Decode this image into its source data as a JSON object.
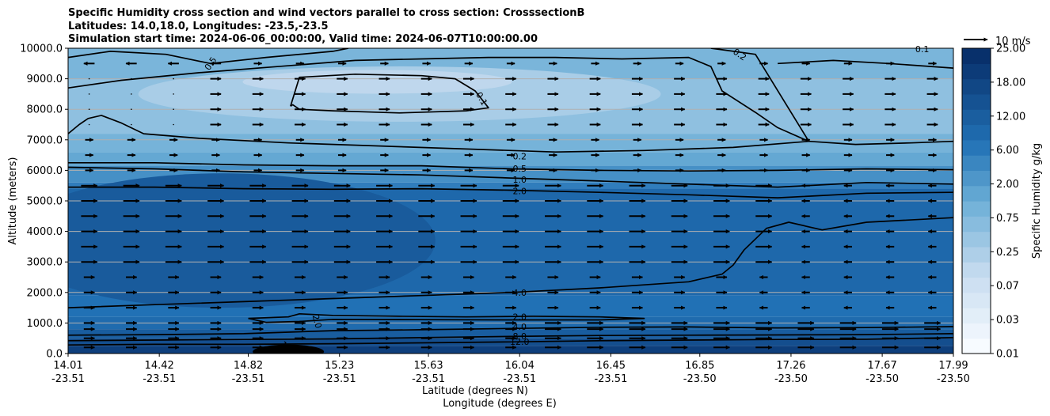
{
  "chart_data": {
    "type": "contour+quiver",
    "title_lines": [
      "Specific Humidity cross section and wind vectors parallel to cross section: CrosssectionB",
      "Latitudes: 14.0,18.0, Longitudes: -23.5,-23.5",
      "Simulation start time: 2024-06-06_00:00:00, Valid time: 2024-06-07T10:00:00.00"
    ],
    "xlabel_lines": [
      "Latitude (degrees N)",
      "Longitude (degrees E)"
    ],
    "ylabel": "Altitude (meters)",
    "ylim": [
      0,
      10000
    ],
    "yticks": [
      0,
      1000,
      2000,
      3000,
      4000,
      5000,
      6000,
      7000,
      8000,
      9000,
      10000
    ],
    "ytick_labels": [
      "0.0",
      "1000.0",
      "2000.0",
      "3000.0",
      "4000.0",
      "5000.0",
      "6000.0",
      "7000.0",
      "8000.0",
      "9000.0",
      "10000.0"
    ],
    "xlim": [
      14.01,
      17.99
    ],
    "xticks": [
      {
        "lat": "14.01",
        "lon": "-23.51"
      },
      {
        "lat": "14.42",
        "lon": "-23.51"
      },
      {
        "lat": "14.82",
        "lon": "-23.51"
      },
      {
        "lat": "15.23",
        "lon": "-23.51"
      },
      {
        "lat": "15.63",
        "lon": "-23.51"
      },
      {
        "lat": "16.04",
        "lon": "-23.51"
      },
      {
        "lat": "16.45",
        "lon": "-23.51"
      },
      {
        "lat": "16.85",
        "lon": "-23.50"
      },
      {
        "lat": "17.26",
        "lon": "-23.50"
      },
      {
        "lat": "17.67",
        "lon": "-23.50"
      },
      {
        "lat": "17.99",
        "lon": "-23.50"
      }
    ],
    "grid": "horizontal",
    "colorbar": {
      "label": "Specific Humidity g/kg",
      "tick_labels": [
        "0.01",
        "0.03",
        "0.07",
        "0.25",
        "0.75",
        "2.00",
        "6.00",
        "12.00",
        "18.00",
        "25.00"
      ],
      "n_levels": 20,
      "color_low": "#f7fbff",
      "color_high": "#08306b"
    },
    "quiver_key": {
      "label": "10 m/s",
      "speed": 10
    },
    "contour_levels": [
      0.1,
      0.2,
      0.5,
      1.0,
      2.0,
      4.0,
      8.0,
      12.0
    ],
    "contour_labels": [
      {
        "text": "0.5",
        "x": 14.65,
        "alt": 9500,
        "rot": -55
      },
      {
        "text": "0.2",
        "x": 17.03,
        "alt": 9800,
        "rot": 35
      },
      {
        "text": "0.1",
        "x": 17.85,
        "alt": 9970,
        "rot": 0
      },
      {
        "text": "0.1",
        "x": 15.87,
        "alt": 8350,
        "rot": 60
      },
      {
        "text": "0.2",
        "x": 16.04,
        "alt": 6460,
        "rot": 0
      },
      {
        "text": "0.5",
        "x": 16.04,
        "alt": 6060,
        "rot": 0
      },
      {
        "text": "1.0",
        "x": 16.04,
        "alt": 5700,
        "rot": 0
      },
      {
        "text": "2.0",
        "x": 16.04,
        "alt": 5330,
        "rot": 0
      },
      {
        "text": "4.0",
        "x": 16.04,
        "alt": 2000,
        "rot": 0
      },
      {
        "text": "2.0",
        "x": 15.13,
        "alt": 1050,
        "rot": 75
      },
      {
        "text": "2.0",
        "x": 16.04,
        "alt": 1200,
        "rot": 0
      },
      {
        "text": "4.0",
        "x": 16.04,
        "alt": 880,
        "rot": 0
      },
      {
        "text": "8.0",
        "x": 16.04,
        "alt": 570,
        "rot": 0
      },
      {
        "text": "12.0",
        "x": 16.04,
        "alt": 390,
        "rot": 0
      },
      {
        "text": "12",
        "x": 14.99,
        "alt": 230,
        "rot": 40
      }
    ],
    "contours": [
      {
        "level": 0.1,
        "x": [
          15.01,
          15.05,
          15.3,
          15.6,
          15.75,
          15.84,
          15.9,
          15.8,
          15.5,
          15.2,
          15.05,
          15.02,
          15.01
        ],
        "alt": [
          8100,
          9050,
          9150,
          9100,
          9000,
          8600,
          8050,
          7950,
          7880,
          7950,
          8000,
          8150,
          8100
        ]
      },
      {
        "level": 0.5,
        "x": [
          14.01,
          14.2,
          14.45,
          14.65,
          14.9,
          15.2,
          15.27
        ],
        "alt": [
          9700,
          9900,
          9800,
          9500,
          9700,
          9900,
          10000
        ]
      },
      {
        "level": 0.2,
        "x": [
          14.01,
          14.25,
          14.6,
          14.95,
          15.3,
          15.6,
          15.9,
          16.2,
          16.5,
          16.8,
          16.9,
          16.95,
          17.1,
          17.2,
          17.34,
          17.1,
          16.95,
          16.9
        ],
        "alt": [
          8700,
          8950,
          9200,
          9400,
          9600,
          9650,
          9700,
          9700,
          9650,
          9700,
          9400,
          8600,
          7900,
          7400,
          6950,
          9800,
          9950,
          10000
        ]
      },
      {
        "level": 0.2,
        "x": [
          14.01,
          14.06,
          14.1,
          14.16,
          14.25,
          14.35,
          14.6,
          15.0,
          15.4,
          15.8,
          16.2,
          16.6,
          17.0,
          17.34
        ],
        "alt": [
          7200,
          7500,
          7700,
          7800,
          7550,
          7200,
          7050,
          6900,
          6800,
          6700,
          6600,
          6650,
          6750,
          6950
        ]
      },
      {
        "level": 0.1,
        "x": [
          17.2,
          17.45,
          17.7,
          17.99
        ],
        "alt": [
          9500,
          9600,
          9500,
          9350
        ]
      },
      {
        "level": 0.2,
        "x": [
          17.34,
          17.55,
          17.8,
          17.99
        ],
        "alt": [
          6950,
          6850,
          6900,
          6950
        ]
      },
      {
        "level": 0.5,
        "x": [
          14.01,
          14.4,
          14.8,
          15.2,
          15.6,
          16.0,
          16.4,
          16.8,
          17.2,
          17.6,
          17.99
        ],
        "alt": [
          6250,
          6250,
          6180,
          6150,
          6150,
          6050,
          6000,
          5980,
          6000,
          6050,
          6020
        ]
      },
      {
        "level": 1.0,
        "x": [
          14.01,
          14.4,
          14.8,
          15.2,
          15.6,
          16.0,
          16.4,
          16.8,
          17.2,
          17.6,
          17.99
        ],
        "alt": [
          6100,
          6050,
          5950,
          5900,
          5850,
          5750,
          5650,
          5550,
          5450,
          5600,
          5550
        ]
      },
      {
        "level": 2.0,
        "x": [
          14.01,
          14.4,
          14.8,
          15.2,
          15.6,
          16.0,
          16.4,
          16.8,
          17.2,
          17.6,
          17.99
        ],
        "alt": [
          5450,
          5450,
          5400,
          5380,
          5400,
          5350,
          5280,
          5200,
          5100,
          5250,
          5280
        ]
      },
      {
        "level": 4.0,
        "x": [
          14.01,
          14.4,
          14.8,
          15.2,
          15.6,
          16.0,
          16.4,
          16.8,
          16.95,
          17.0,
          17.05,
          17.15,
          17.25,
          17.4,
          17.6,
          17.99
        ],
        "alt": [
          1500,
          1600,
          1700,
          1800,
          1900,
          2000,
          2150,
          2350,
          2600,
          2900,
          3400,
          4100,
          4300,
          4050,
          4300,
          4450
        ]
      },
      {
        "level": 2.0,
        "x": [
          14.82,
          15.0,
          15.05,
          15.2,
          15.5,
          15.8,
          16.1,
          16.4,
          16.6,
          16.4,
          16.0,
          15.6,
          15.2,
          15.05,
          14.9,
          14.82
        ],
        "alt": [
          1150,
          1200,
          1300,
          1250,
          1220,
          1200,
          1220,
          1200,
          1150,
          1100,
          1100,
          1110,
          1120,
          1050,
          1020,
          1150
        ]
      },
      {
        "level": 4.0,
        "x": [
          14.01,
          14.4,
          14.8,
          15.2,
          15.6,
          16.0,
          16.4,
          16.8,
          17.2,
          17.6,
          17.99
        ],
        "alt": [
          600,
          620,
          650,
          750,
          780,
          820,
          860,
          870,
          840,
          850,
          880
        ]
      },
      {
        "level": 8.0,
        "x": [
          14.01,
          14.4,
          14.8,
          15.2,
          15.6,
          16.0,
          16.4,
          16.8,
          17.2,
          17.6,
          17.99
        ],
        "alt": [
          420,
          440,
          460,
          480,
          520,
          560,
          590,
          600,
          610,
          620,
          650
        ]
      },
      {
        "level": 12.0,
        "x": [
          14.01,
          14.4,
          14.8,
          15.2,
          15.6,
          16.0,
          16.4,
          16.8,
          17.2,
          17.6,
          17.99
        ],
        "alt": [
          280,
          300,
          300,
          320,
          350,
          380,
          420,
          440,
          460,
          470,
          520
        ]
      }
    ]
  }
}
